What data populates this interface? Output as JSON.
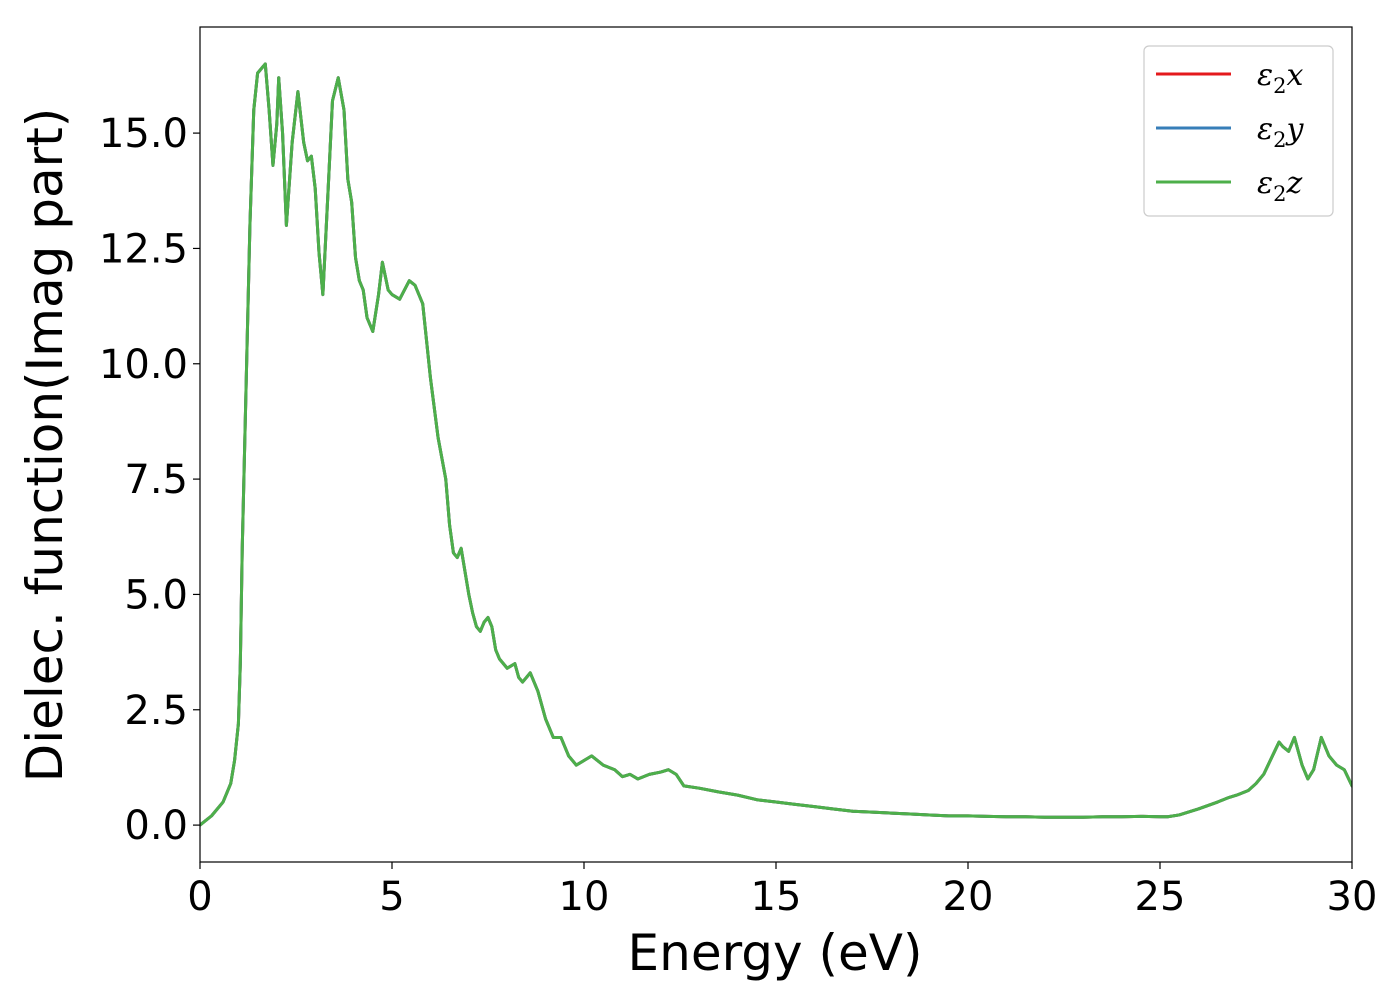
{
  "chart_data": {
    "type": "line",
    "title": "",
    "xlabel": "Energy (eV)",
    "ylabel": "Dielec. function(Imag part)",
    "xlim": [
      0,
      30
    ],
    "ylim": [
      -0.8,
      17.3
    ],
    "grid": false,
    "legend_position": "top-right",
    "x_ticks": [
      0,
      5,
      10,
      15,
      20,
      25,
      30
    ],
    "x_tick_labels": [
      "0",
      "5",
      "10",
      "15",
      "20",
      "25",
      "30"
    ],
    "y_ticks": [
      0.0,
      2.5,
      5.0,
      7.5,
      10.0,
      12.5,
      15.0
    ],
    "y_tick_labels": [
      "0.0",
      "2.5",
      "5.0",
      "7.5",
      "10.0",
      "12.5",
      "15.0"
    ],
    "series": [
      {
        "name": "ε2x",
        "legend_main": "ε",
        "legend_sub": "2",
        "legend_tail": "x",
        "color": "#e41a1c",
        "data_ref": "shared"
      },
      {
        "name": "ε2y",
        "legend_main": "ε",
        "legend_sub": "2",
        "legend_tail": "y",
        "color": "#377eb8",
        "data_ref": "shared"
      },
      {
        "name": "ε2z",
        "legend_main": "ε",
        "legend_sub": "2",
        "legend_tail": "z",
        "color": "#4daf4a",
        "data_ref": "shared"
      }
    ],
    "x": [
      0,
      0.3,
      0.6,
      0.8,
      0.9,
      1.0,
      1.05,
      1.1,
      1.2,
      1.3,
      1.4,
      1.5,
      1.6,
      1.7,
      1.8,
      1.9,
      2.0,
      2.05,
      2.15,
      2.25,
      2.4,
      2.55,
      2.7,
      2.8,
      2.9,
      3.0,
      3.1,
      3.2,
      3.35,
      3.45,
      3.6,
      3.75,
      3.85,
      3.95,
      4.05,
      4.15,
      4.25,
      4.35,
      4.5,
      4.65,
      4.75,
      4.9,
      5.0,
      5.2,
      5.45,
      5.6,
      5.7,
      5.8,
      6.0,
      6.2,
      6.4,
      6.5,
      6.6,
      6.7,
      6.8,
      6.9,
      7.0,
      7.1,
      7.2,
      7.3,
      7.4,
      7.5,
      7.6,
      7.7,
      7.8,
      8.0,
      8.2,
      8.3,
      8.4,
      8.6,
      8.8,
      9.0,
      9.2,
      9.4,
      9.6,
      9.8,
      10.0,
      10.2,
      10.5,
      10.8,
      11.0,
      11.2,
      11.4,
      11.7,
      12.0,
      12.2,
      12.4,
      12.6,
      13.0,
      13.5,
      14.0,
      14.5,
      15.0,
      15.5,
      16.0,
      16.5,
      17.0,
      17.5,
      18.0,
      18.5,
      19.0,
      19.5,
      20.0,
      20.5,
      21.0,
      21.5,
      22.0,
      22.5,
      23.0,
      23.5,
      24.0,
      24.5,
      25.0,
      25.2,
      25.5,
      26.0,
      26.5,
      26.8,
      27.0,
      27.3,
      27.5,
      27.7,
      27.9,
      28.1,
      28.2,
      28.35,
      28.5,
      28.7,
      28.85,
      29.0,
      29.2,
      29.4,
      29.6,
      29.8,
      30.0
    ],
    "y": [
      0.0,
      0.2,
      0.5,
      0.9,
      1.4,
      2.2,
      3.5,
      6.0,
      9.5,
      13.0,
      15.5,
      16.3,
      16.4,
      16.5,
      15.5,
      14.3,
      15.2,
      16.2,
      15.0,
      13.0,
      14.8,
      15.9,
      14.8,
      14.4,
      14.5,
      13.8,
      12.4,
      11.5,
      14.0,
      15.7,
      16.2,
      15.5,
      14.0,
      13.5,
      12.3,
      11.8,
      11.6,
      11.0,
      10.7,
      11.5,
      12.2,
      11.6,
      11.5,
      11.4,
      11.8,
      11.7,
      11.5,
      11.3,
      9.7,
      8.4,
      7.5,
      6.5,
      5.9,
      5.8,
      6.0,
      5.5,
      5.0,
      4.6,
      4.3,
      4.2,
      4.4,
      4.5,
      4.3,
      3.8,
      3.6,
      3.4,
      3.5,
      3.2,
      3.1,
      3.3,
      2.9,
      2.3,
      1.9,
      1.9,
      1.5,
      1.3,
      1.4,
      1.5,
      1.3,
      1.2,
      1.05,
      1.1,
      1.0,
      1.1,
      1.15,
      1.2,
      1.1,
      0.85,
      0.8,
      0.72,
      0.65,
      0.55,
      0.5,
      0.45,
      0.4,
      0.35,
      0.3,
      0.28,
      0.26,
      0.24,
      0.22,
      0.2,
      0.2,
      0.19,
      0.18,
      0.18,
      0.17,
      0.17,
      0.17,
      0.18,
      0.18,
      0.19,
      0.18,
      0.18,
      0.22,
      0.35,
      0.5,
      0.6,
      0.65,
      0.75,
      0.9,
      1.1,
      1.45,
      1.8,
      1.7,
      1.6,
      1.9,
      1.3,
      1.0,
      1.2,
      1.9,
      1.5,
      1.3,
      1.2,
      0.85
    ]
  }
}
